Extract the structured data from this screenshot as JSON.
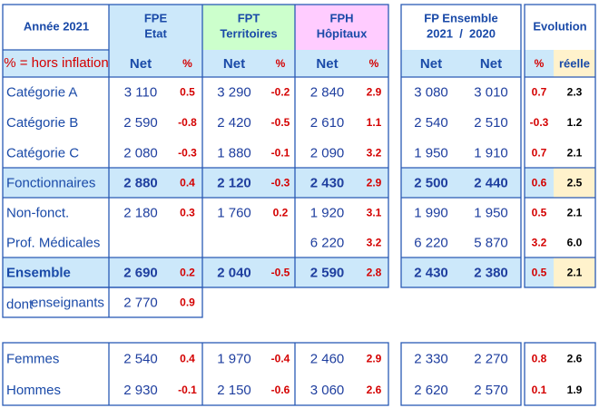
{
  "header": {
    "title": "Année 2021",
    "note": "% = hors inflation",
    "groups": [
      {
        "line1": "FPE",
        "line2": "Etat"
      },
      {
        "line1": "FPT",
        "line2": "Territoires"
      },
      {
        "line1": "FPH",
        "line2": "Hôpitaux"
      },
      {
        "line1": "FP Ensemble",
        "line2": "2021  /  2020"
      },
      {
        "line1": "Evolution"
      }
    ],
    "subheaders": [
      "Net",
      "%",
      "Net",
      "%",
      "Net",
      "%",
      "Net",
      "Net",
      "%",
      "réelle"
    ]
  },
  "rows": [
    {
      "label": "Catégorie A",
      "cells": [
        "3 110",
        "0.5",
        "3 290",
        "-0.2",
        "2 840",
        "2.9",
        "3 080",
        "3 010",
        "0.7",
        "2.3"
      ]
    },
    {
      "label": "Catégorie B",
      "cells": [
        "2 590",
        "-0.8",
        "2 420",
        "-0.5",
        "2 610",
        "1.1",
        "2 540",
        "2 510",
        "-0.3",
        "1.2"
      ]
    },
    {
      "label": "Catégorie C",
      "cells": [
        "2 080",
        "-0.3",
        "1 880",
        "-0.1",
        "2 090",
        "3.2",
        "1 950",
        "1 910",
        "0.7",
        "2.1"
      ]
    },
    {
      "label": "Fonctionnaires",
      "cells": [
        "2 880",
        "0.4",
        "2 120",
        "-0.3",
        "2 430",
        "2.9",
        "2 500",
        "2 440",
        "0.6",
        "2.5"
      ]
    },
    {
      "label": "Non-fonct.",
      "cells": [
        "2 180",
        "0.3",
        "1 760",
        "0.2",
        "1 920",
        "3.1",
        "1 990",
        "1 950",
        "0.5",
        "2.1"
      ]
    },
    {
      "label": "Prof. Médicales",
      "cells": [
        null,
        null,
        null,
        null,
        "6 220",
        "3.2",
        "6 220",
        "5 870",
        "3.2",
        "6.0"
      ]
    },
    {
      "label": "Ensemble",
      "cells": [
        "2 690",
        "0.2",
        "2 040",
        "-0.5",
        "2 590",
        "2.8",
        "2 430",
        "2 380",
        "0.5",
        "2.1"
      ]
    },
    {
      "label_prefix": "dont",
      "label": "enseignants",
      "cells": [
        "2 770",
        "0.9"
      ]
    },
    {
      "label": "Femmes",
      "cells": [
        "2 540",
        "0.4",
        "1 970",
        "-0.4",
        "2 460",
        "2.9",
        "2 330",
        "2 270",
        "0.8",
        "2.6"
      ]
    },
    {
      "label": "Hommes",
      "cells": [
        "2 930",
        "-0.1",
        "2 150",
        "-0.6",
        "3 060",
        "2.6",
        "2 620",
        "2 570",
        "0.1",
        "1.9"
      ]
    }
  ]
}
